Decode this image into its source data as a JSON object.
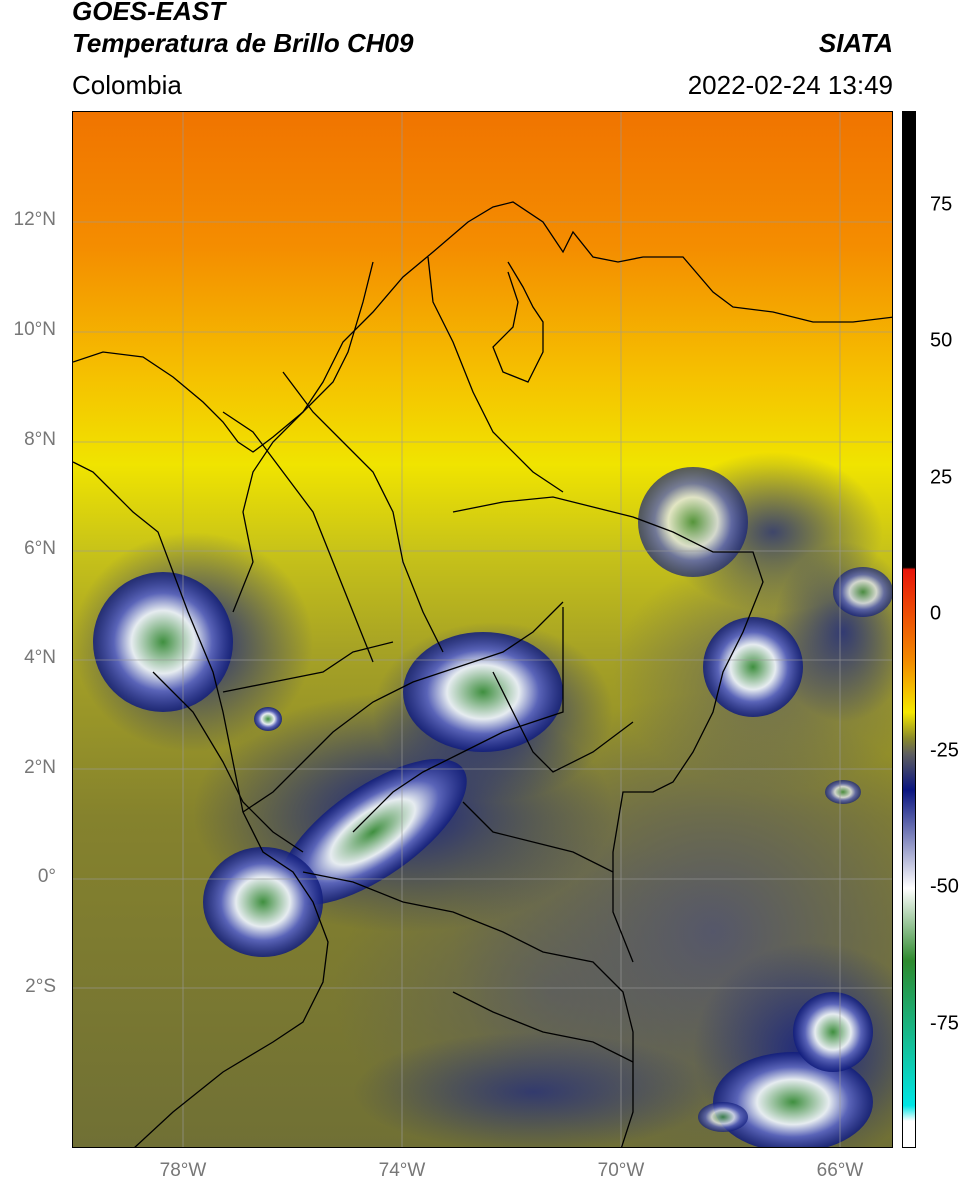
{
  "header": {
    "satellite": "GOES-EAST",
    "product": "Temperatura de Brillo CH09",
    "agency": "SIATA",
    "region": "Colombia",
    "timestamp": "2022-02-24 13:49"
  },
  "map": {
    "lat_labels": [
      "12°N",
      "10°N",
      "8°N",
      "6°N",
      "4°N",
      "2°N",
      "0°",
      "2°S"
    ],
    "lon_labels": [
      "78°W",
      "74°W",
      "70°W",
      "66°W"
    ]
  },
  "colorbar": {
    "ticks": [
      "75",
      "50",
      "25",
      "0",
      "-25",
      "-50",
      "-75"
    ],
    "colors": {
      "black": "#000000",
      "red": "#e8150a",
      "orange": "#f28a00",
      "yellow": "#f5e800",
      "olive": "#8a8a2a",
      "gray": "#5f5f5f",
      "navy": "#0a1580",
      "white": "#ffffff",
      "green": "#2e8a2e",
      "cyan": "#00e5e5"
    }
  }
}
